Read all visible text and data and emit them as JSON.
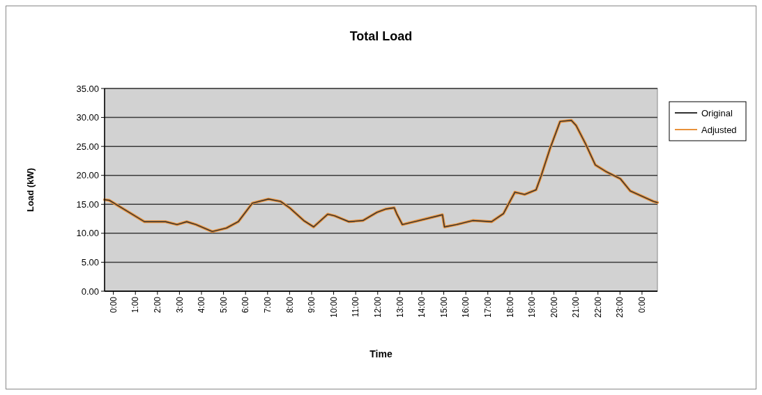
{
  "chart_data": {
    "type": "line",
    "title": "Total Load",
    "xlabel": "Time",
    "ylabel": "Load (kW)",
    "xlim": [
      -0.4,
      24.7
    ],
    "xticks": [
      {
        "value": 0,
        "label": "0:00"
      },
      {
        "value": 1,
        "label": "1:00"
      },
      {
        "value": 2,
        "label": "2:00"
      },
      {
        "value": 3,
        "label": "3:00"
      },
      {
        "value": 4,
        "label": "4:00"
      },
      {
        "value": 5,
        "label": "5:00"
      },
      {
        "value": 6,
        "label": "6:00"
      },
      {
        "value": 7,
        "label": "7:00"
      },
      {
        "value": 8,
        "label": "8:00"
      },
      {
        "value": 9,
        "label": "9:00"
      },
      {
        "value": 10,
        "label": "10:00"
      },
      {
        "value": 11,
        "label": "11:00"
      },
      {
        "value": 12,
        "label": "12:00"
      },
      {
        "value": 13,
        "label": "13:00"
      },
      {
        "value": 14,
        "label": "14:00"
      },
      {
        "value": 15,
        "label": "15:00"
      },
      {
        "value": 16,
        "label": "16:00"
      },
      {
        "value": 17,
        "label": "17:00"
      },
      {
        "value": 18,
        "label": "18:00"
      },
      {
        "value": 19,
        "label": "19:00"
      },
      {
        "value": 20,
        "label": "20:00"
      },
      {
        "value": 21,
        "label": "21:00"
      },
      {
        "value": 22,
        "label": "22:00"
      },
      {
        "value": 23,
        "label": "23:00"
      },
      {
        "value": 24,
        "label": "0:00"
      }
    ],
    "ylim": [
      0,
      35
    ],
    "yticks": [
      {
        "value": 0,
        "label": "0.00"
      },
      {
        "value": 5,
        "label": "5.00"
      },
      {
        "value": 10,
        "label": "10.00"
      },
      {
        "value": 15,
        "label": "15.00"
      },
      {
        "value": 20,
        "label": "20.00"
      },
      {
        "value": 25,
        "label": "25.00"
      },
      {
        "value": 30,
        "label": "30.00"
      },
      {
        "value": 35,
        "label": "35.00"
      }
    ],
    "grid": "y",
    "legend": "top right",
    "x": [
      -0.4,
      -0.19,
      1.41,
      2.37,
      2.89,
      3.33,
      3.75,
      4.49,
      5.13,
      5.67,
      6.31,
      7.04,
      7.59,
      8.0,
      8.64,
      9.09,
      9.73,
      10.05,
      10.69,
      11.33,
      11.96,
      12.38,
      12.75,
      12.86,
      13.12,
      13.88,
      14.94,
      15.03,
      15.58,
      16.31,
      17.17,
      17.71,
      18.03,
      18.23,
      18.67,
      19.19,
      19.41,
      19.83,
      20.28,
      20.79,
      21.01,
      21.43,
      21.88,
      22.39,
      23.02,
      23.47,
      24.52,
      24.7
    ],
    "series": [
      {
        "name": "Original",
        "color": "#303030",
        "values": [
          15.8,
          15.7,
          12.0,
          12.0,
          11.5,
          12.0,
          11.5,
          10.3,
          10.9,
          12.0,
          15.2,
          15.9,
          15.5,
          14.4,
          12.2,
          11.1,
          13.3,
          13.0,
          12.0,
          12.2,
          13.6,
          14.2,
          14.4,
          13.4,
          11.5,
          12.2,
          13.2,
          11.1,
          11.5,
          12.2,
          12.0,
          13.4,
          15.7,
          17.1,
          16.7,
          17.5,
          19.8,
          24.7,
          29.3,
          29.5,
          28.6,
          25.5,
          21.8,
          20.6,
          19.4,
          17.3,
          15.5,
          15.3
        ]
      },
      {
        "name": "Adjusted",
        "color": "#e8913a",
        "values": [
          15.8,
          15.7,
          12.0,
          12.0,
          11.5,
          12.0,
          11.5,
          10.3,
          10.9,
          12.0,
          15.2,
          15.9,
          15.5,
          14.4,
          12.2,
          11.1,
          13.3,
          13.0,
          12.0,
          12.2,
          13.6,
          14.2,
          14.4,
          13.4,
          11.5,
          12.2,
          13.2,
          11.1,
          11.5,
          12.2,
          12.0,
          13.4,
          15.7,
          17.1,
          16.7,
          17.5,
          19.8,
          24.7,
          29.3,
          29.5,
          28.6,
          25.5,
          21.8,
          20.6,
          19.4,
          17.3,
          15.5,
          15.3
        ]
      }
    ]
  }
}
